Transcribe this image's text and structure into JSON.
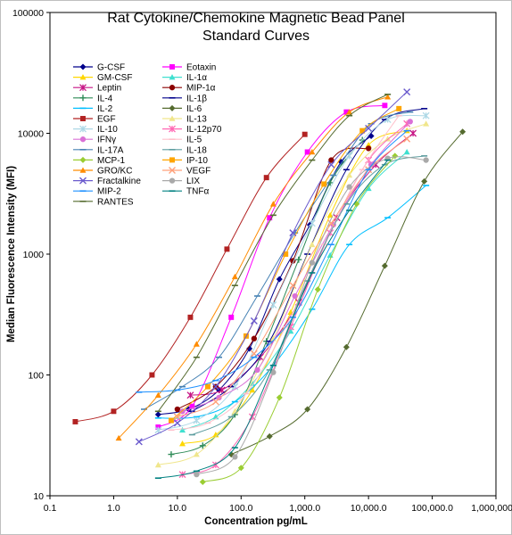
{
  "chart_data": {
    "type": "scatter",
    "title_line1": "Rat Cytokine/Chemokine Magnetic Bead Panel",
    "title_line2": "Standard Curves",
    "xlabel": "Concentration  pg/mL",
    "ylabel": "Median Fluorescence Intensity  (MFI)",
    "xscale": "log",
    "yscale": "log",
    "xlim": [
      0.1,
      1000000
    ],
    "ylim": [
      10,
      100000
    ],
    "x_tick_labels": [
      "0.1",
      "1.0",
      "10.0",
      "100.0",
      "1,000.0",
      "10,000.0",
      "100,000.0",
      "1,000,000.0"
    ],
    "y_tick_labels": [
      "10",
      "100",
      "1000",
      "10000",
      "100000"
    ],
    "grid": false,
    "legend_position": "top-left",
    "series": [
      {
        "name": "G-CSF",
        "color": "#00008b",
        "marker": "diamond",
        "x": [
          5,
          15,
          45,
          135,
          400,
          1200,
          3700,
          11000
        ],
        "y": [
          47,
          52,
          75,
          165,
          620,
          1750,
          5800,
          9500
        ]
      },
      {
        "name": "Eotaxin",
        "color": "#ff00ff",
        "marker": "square",
        "x": [
          5,
          17,
          70,
          280,
          1100,
          4500,
          18000
        ],
        "y": [
          37,
          55,
          300,
          2000,
          7000,
          15000,
          17000
        ]
      },
      {
        "name": "GM-CSF",
        "color": "#ffd700",
        "marker": "triangle",
        "x": [
          12,
          40,
          150,
          600,
          2500,
          10000,
          40000
        ],
        "y": [
          27,
          32,
          75,
          330,
          2100,
          8000,
          10500
        ]
      },
      {
        "name": "IL-1α",
        "color": "#40e0d0",
        "marker": "triangle",
        "x": [
          12,
          40,
          150,
          600,
          2500,
          10000,
          40000
        ],
        "y": [
          35,
          45,
          85,
          230,
          980,
          3500,
          7000
        ]
      },
      {
        "name": "Leptin",
        "color": "#c71585",
        "marker": "cross",
        "x": [
          16,
          50,
          200,
          800,
          3200,
          13000,
          50000
        ],
        "y": [
          68,
          75,
          140,
          400,
          2000,
          5500,
          10000
        ]
      },
      {
        "name": "MIP-1α",
        "color": "#8b0000",
        "marker": "circle",
        "x": [
          10,
          40,
          160,
          650,
          2600,
          10000
        ],
        "y": [
          52,
          80,
          200,
          880,
          6000,
          7500
        ]
      },
      {
        "name": "IL-4",
        "color": "#2e8b57",
        "marker": "plus",
        "x": [
          8,
          25,
          80,
          250,
          800,
          2500,
          8000
        ],
        "y": [
          22,
          26,
          47,
          190,
          900,
          3900,
          8800
        ]
      },
      {
        "name": "IL-1β",
        "color": "#00008b",
        "marker": "dash",
        "x": [
          17,
          70,
          280,
          1100,
          4500,
          18000,
          75000
        ],
        "y": [
          50,
          80,
          190,
          1000,
          5000,
          13000,
          16000
        ]
      },
      {
        "name": "IL-2",
        "color": "#00bfff",
        "marker": "dash",
        "x": [
          5,
          20,
          80,
          320,
          1300,
          5000,
          20000,
          80000
        ],
        "y": [
          44,
          45,
          60,
          120,
          350,
          1200,
          2000,
          3700
        ]
      },
      {
        "name": "IL-6",
        "color": "#556b2f",
        "marker": "diamond",
        "x": [
          70,
          280,
          1100,
          4500,
          18000,
          75000,
          300000
        ],
        "y": [
          22,
          31,
          52,
          170,
          800,
          4000,
          10300
        ]
      },
      {
        "name": "EGF",
        "color": "#b22222",
        "marker": "square",
        "x": [
          0.25,
          1,
          4,
          16,
          60,
          250,
          1000
        ],
        "y": [
          41,
          50,
          100,
          300,
          1100,
          4300,
          9800
        ]
      },
      {
        "name": "IL-13",
        "color": "#f0e68c",
        "marker": "triangle",
        "x": [
          5,
          20,
          80,
          320,
          1300,
          5000,
          20000,
          80000
        ],
        "y": [
          18,
          22,
          50,
          200,
          1200,
          4500,
          9000,
          12000
        ]
      },
      {
        "name": "IL-10",
        "color": "#add8e6",
        "marker": "cross",
        "x": [
          5,
          20,
          80,
          320,
          1300,
          5000,
          20000,
          80000
        ],
        "y": [
          35,
          42,
          80,
          380,
          1800,
          6500,
          13000,
          14000
        ]
      },
      {
        "name": "IL-12p70",
        "color": "#ff69b4",
        "marker": "cross",
        "x": [
          12,
          40,
          150,
          600,
          2500,
          10000,
          40000
        ],
        "y": [
          15,
          18,
          45,
          250,
          1500,
          6000,
          12000
        ]
      },
      {
        "name": "IFNγ",
        "color": "#da70d6",
        "marker": "circle",
        "x": [
          12,
          45,
          180,
          700,
          2800,
          11000,
          45000
        ],
        "y": [
          50,
          65,
          110,
          450,
          1750,
          5500,
          12500
        ]
      },
      {
        "name": "IL-5",
        "color": "#ffc0cb",
        "marker": "dash",
        "x": [
          8,
          30,
          120,
          500,
          2000,
          8000,
          30000
        ],
        "y": [
          35,
          40,
          70,
          250,
          1200,
          5000,
          14000
        ]
      },
      {
        "name": "IL-17A",
        "color": "#4682b4",
        "marker": "dash",
        "x": [
          3,
          12,
          45,
          180,
          700,
          2800,
          11000,
          45000
        ],
        "y": [
          52,
          80,
          140,
          450,
          1500,
          4500,
          12000,
          15000
        ]
      },
      {
        "name": "IL-18",
        "color": "#5f9ea0",
        "marker": "dash",
        "x": [
          17,
          70,
          280,
          1100,
          4500,
          18000,
          75000
        ],
        "y": [
          32,
          45,
          110,
          600,
          2600,
          5500,
          6500
        ]
      },
      {
        "name": "MCP-1",
        "color": "#9acd32",
        "marker": "diamond",
        "x": [
          25,
          100,
          400,
          1600,
          6500,
          26000
        ],
        "y": [
          13,
          17,
          65,
          510,
          2600,
          6500
        ]
      },
      {
        "name": "IP-10",
        "color": "#ffa500",
        "marker": "square",
        "x": [
          8,
          30,
          120,
          500,
          2000,
          8000,
          30000
        ],
        "y": [
          42,
          80,
          210,
          1000,
          3800,
          10500,
          16000
        ]
      },
      {
        "name": "GRO/KC",
        "color": "#ff8c00",
        "marker": "triangle",
        "x": [
          1.2,
          5,
          20,
          80,
          320,
          1300,
          5000,
          20000
        ],
        "y": [
          30,
          68,
          180,
          650,
          2600,
          7000,
          15000,
          20000
        ]
      },
      {
        "name": "VEGF",
        "color": "#ffa07a",
        "marker": "x",
        "x": [
          10,
          40,
          160,
          650,
          2600,
          10000,
          40000
        ],
        "y": [
          45,
          60,
          150,
          550,
          1800,
          5000,
          9000
        ]
      },
      {
        "name": "Fractalkine",
        "color": "#6a5acd",
        "marker": "x",
        "x": [
          2.5,
          10,
          40,
          160,
          650,
          2600,
          10000,
          40000
        ],
        "y": [
          28,
          40,
          80,
          280,
          1500,
          5500,
          11000,
          22000
        ]
      },
      {
        "name": "LIX",
        "color": "#a9a9a9",
        "marker": "circle",
        "x": [
          20,
          80,
          320,
          1300,
          5000,
          20000,
          80000
        ],
        "y": [
          15,
          21,
          105,
          850,
          3600,
          6200,
          6000
        ]
      },
      {
        "name": "MIP-2",
        "color": "#1e90ff",
        "marker": "dash",
        "x": [
          2.5,
          10,
          40,
          160,
          650,
          2600,
          10000,
          40000
        ],
        "y": [
          72,
          75,
          90,
          140,
          300,
          1200,
          5000,
          10500
        ]
      },
      {
        "name": "TNFα",
        "color": "#008080",
        "marker": "dash",
        "x": [
          5,
          20,
          80,
          320,
          1300,
          5000,
          20000
        ],
        "y": [
          14,
          16,
          25,
          120,
          700,
          2300,
          6000
        ]
      },
      {
        "name": "RANTES",
        "color": "#556b2f",
        "marker": "dash",
        "x": [
          5,
          20,
          80,
          320,
          1300,
          5000,
          20000
        ],
        "y": [
          50,
          140,
          550,
          2100,
          6000,
          14000,
          21000
        ]
      }
    ]
  }
}
